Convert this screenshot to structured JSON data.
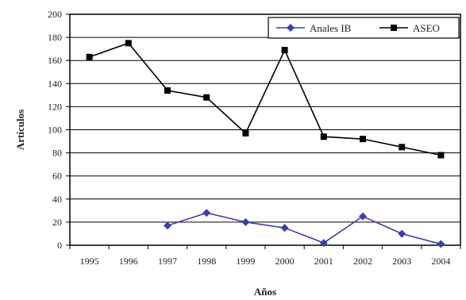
{
  "chart_data": {
    "type": "line",
    "x": [
      "1995",
      "1996",
      "1997",
      "1998",
      "1999",
      "2000",
      "2001",
      "2002",
      "2003",
      "2004"
    ],
    "series": [
      {
        "name": "Anales IB",
        "color": "#3d3db0",
        "marker": "diamond",
        "values": [
          null,
          null,
          17,
          28,
          20,
          15,
          2,
          25,
          10,
          1
        ]
      },
      {
        "name": "ASEO",
        "color": "#000000",
        "marker": "square",
        "values": [
          163,
          175,
          134,
          128,
          97,
          169,
          94,
          92,
          85,
          78
        ]
      }
    ],
    "yticks": [
      "0",
      "20",
      "40",
      "60",
      "80",
      "100",
      "120",
      "140",
      "160",
      "180",
      "200"
    ],
    "xlabel": "Años",
    "ylabel": "Artículos",
    "ylim": [
      0,
      200
    ],
    "grid": true,
    "legend_position": "top-right"
  }
}
